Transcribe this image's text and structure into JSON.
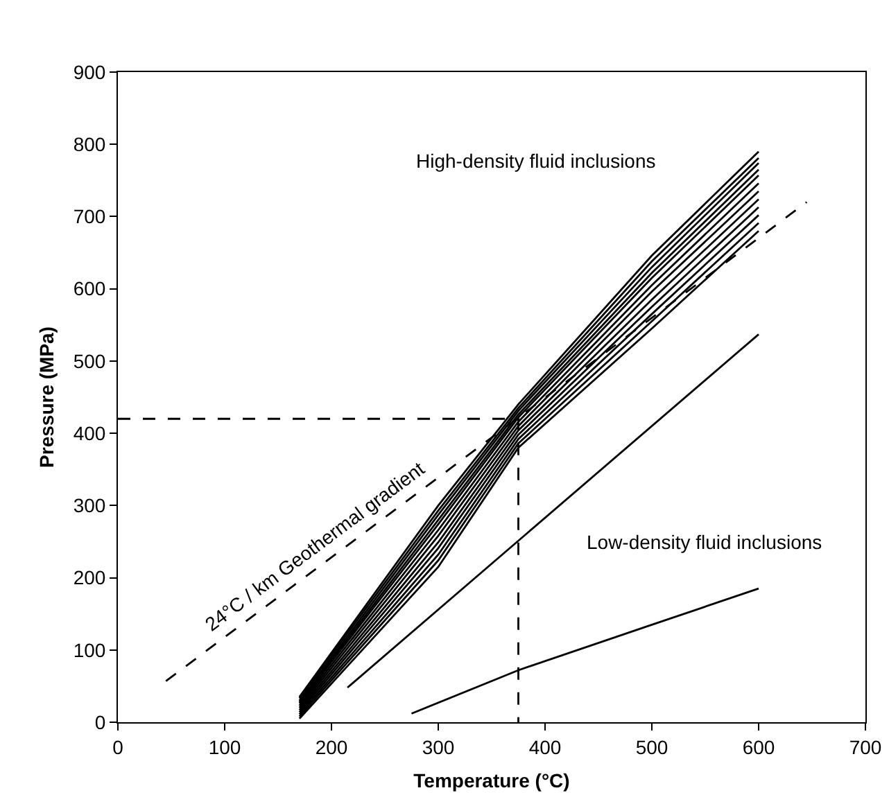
{
  "chart_data": {
    "type": "line",
    "xlabel": "Temperature (°C)",
    "ylabel": "Pressure (MPa)",
    "xlim": [
      0,
      700
    ],
    "xticks": [
      0,
      100,
      200,
      300,
      400,
      500,
      600,
      700
    ],
    "ylim": [
      0,
      900
    ],
    "yticks": [
      0,
      100,
      200,
      300,
      400,
      500,
      600,
      700,
      800,
      900
    ],
    "grid": false,
    "legend": false,
    "marker": "none",
    "x": [
      170,
      300,
      375,
      500,
      600
    ],
    "series": [
      {
        "color": "#000000",
        "line_style": "solid",
        "values": [
          35,
          300,
          440,
          646,
          790
        ]
      },
      {
        "color": "#000000",
        "line_style": "solid",
        "values": [
          33,
          293,
          435,
          638,
          781
        ]
      },
      {
        "color": "#000000",
        "line_style": "solid",
        "values": [
          30,
          287,
          431,
          630,
          774
        ]
      },
      {
        "color": "#000000",
        "line_style": "solid",
        "values": [
          28,
          280,
          426,
          622,
          765
        ]
      },
      {
        "color": "#000000",
        "line_style": "solid",
        "values": [
          26,
          274,
          422,
          615,
          757
        ]
      },
      {
        "color": "#000000",
        "line_style": "solid",
        "values": [
          23,
          266,
          416,
          605,
          746
        ]
      },
      {
        "color": "#000000",
        "line_style": "solid",
        "values": [
          20,
          258,
          410,
          596,
          735
        ]
      },
      {
        "color": "#000000",
        "line_style": "solid",
        "values": [
          17,
          249,
          404,
          585,
          724
        ]
      },
      {
        "color": "#000000",
        "line_style": "solid",
        "values": [
          14,
          241,
          398,
          575,
          713
        ]
      },
      {
        "color": "#000000",
        "line_style": "solid",
        "values": [
          11,
          232,
          392,
          565,
          702
        ]
      },
      {
        "color": "#000000",
        "line_style": "solid",
        "values": [
          8,
          224,
          386,
          555,
          691
        ]
      },
      {
        "color": "#000000",
        "line_style": "solid",
        "values": [
          5,
          215,
          380,
          545,
          680
        ]
      },
      {
        "color": "#000000",
        "line_style": "solid",
        "x": [
          215,
          600
        ],
        "values": [
          48,
          537
        ]
      },
      {
        "color": "#000000",
        "line_style": "solid",
        "x": [
          275,
          375,
          500,
          600
        ],
        "values": [
          12,
          72,
          135,
          185
        ]
      },
      {
        "name": "24°C / km Geothermal gradient",
        "color": "#000000",
        "line_style": "dashed",
        "x": [
          45,
          645
        ],
        "values": [
          57,
          720
        ]
      },
      {
        "color": "#000000",
        "line_style": "dashed",
        "x": [
          0,
          375,
          375
        ],
        "values": [
          420,
          420,
          0
        ]
      }
    ],
    "annotations": [
      "High-density fluid inclusions",
      "Low-density fluid inclusions"
    ]
  }
}
